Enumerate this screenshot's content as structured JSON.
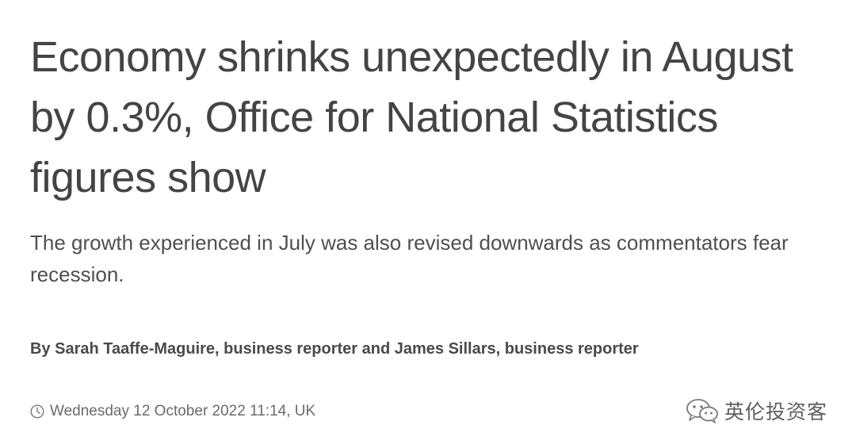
{
  "article": {
    "headline": "Economy shrinks unexpectedly in August by 0.3%, Office for National Statistics figures show",
    "standfirst": "The growth experienced in July was also revised downwards as commentators fear recession.",
    "byline": "By Sarah Taaffe-Maguire, business reporter and James Sillars, business reporter",
    "date": "Wednesday 12 October 2022 11:14, UK",
    "date_icon": "clock-icon"
  },
  "watermark": {
    "icon": "wechat-icon",
    "text": "英伦投资客"
  }
}
